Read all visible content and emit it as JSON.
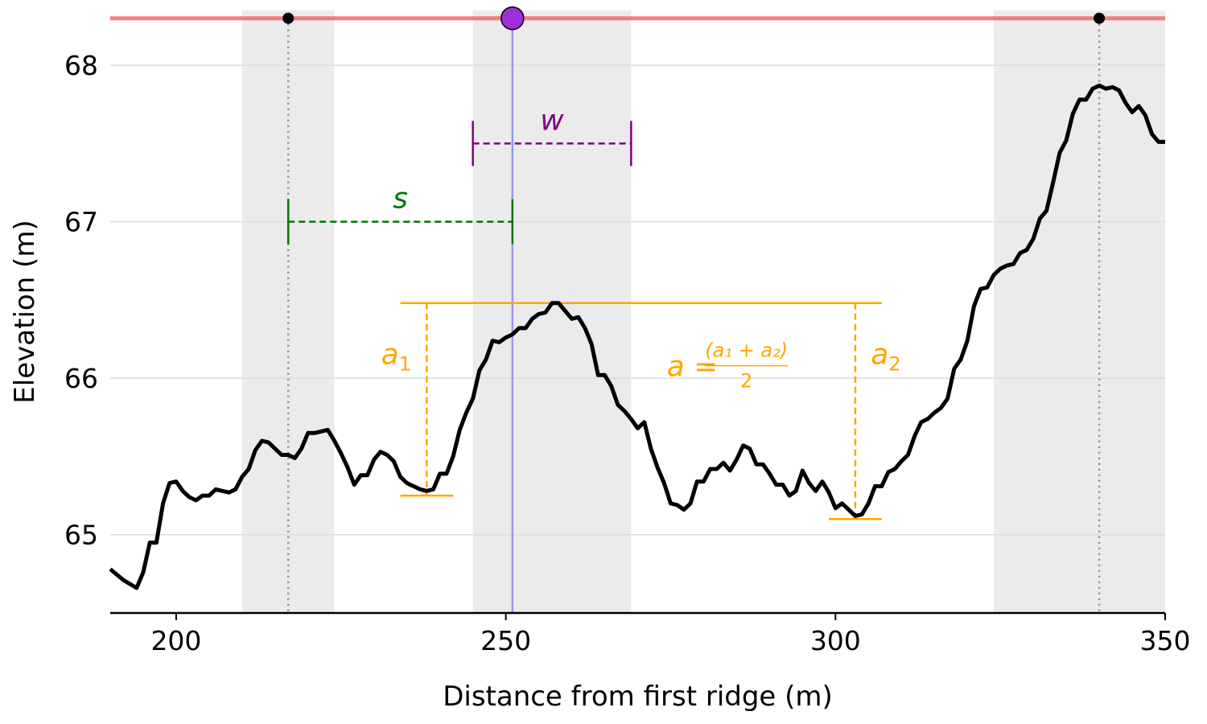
{
  "chart_data": {
    "type": "line",
    "title": "",
    "xlabel": "Distance from first ridge (m)",
    "ylabel": "Elevation (m)",
    "xlim": [
      190,
      350
    ],
    "ylim": [
      64.5,
      68.35
    ],
    "xticks": [
      200,
      250,
      300,
      350
    ],
    "yticks": [
      65,
      66,
      67,
      68
    ],
    "grid": "horizontal",
    "colors": {
      "profile": "#000000",
      "ridge_line": "#f08080",
      "shade": "#ebebeb",
      "highlight_point": "#9b30d9",
      "highlight_line": "#9999ee",
      "spacing": "#007700",
      "width": "#800080",
      "amplitude": "#ffa500",
      "grid": "#dddddd",
      "ridge_marker_line": "#888888"
    },
    "series": [
      {
        "x": [
          190,
          192,
          194,
          195,
          196,
          197,
          198,
          199,
          200,
          201,
          202,
          203,
          204,
          205,
          206,
          207,
          208,
          209,
          210,
          211,
          212,
          213,
          214,
          215,
          216,
          217,
          218,
          219,
          220,
          221,
          222,
          223,
          224,
          225,
          226,
          227,
          228,
          229,
          230,
          231,
          232,
          233,
          234,
          235,
          236,
          237,
          238,
          239,
          240,
          241,
          242,
          243,
          244,
          245,
          246,
          247,
          248,
          249,
          250,
          251,
          252,
          253,
          254,
          255,
          256,
          257,
          258,
          259,
          260,
          261,
          262,
          263,
          264,
          265,
          266,
          267,
          268,
          269,
          270,
          271,
          272,
          273,
          274,
          275,
          276,
          277,
          278,
          279,
          280,
          281,
          282,
          283,
          284,
          285,
          286,
          287,
          288,
          289,
          290,
          291,
          292,
          293,
          294,
          295,
          296,
          297,
          298,
          299,
          300,
          301,
          302,
          303,
          304,
          305,
          306,
          307,
          308,
          309,
          310,
          311,
          312,
          313,
          314,
          315,
          316,
          317,
          318,
          319,
          320,
          321,
          322,
          323,
          324,
          325,
          326,
          327,
          328,
          329,
          330,
          331,
          332,
          333,
          334,
          335,
          336,
          337,
          338,
          339,
          340,
          341,
          342,
          343,
          344,
          345,
          346,
          347,
          348,
          349,
          350
        ],
        "y": [
          64.78,
          64.71,
          64.66,
          64.76,
          64.95,
          64.95,
          65.2,
          65.33,
          65.34,
          65.28,
          65.24,
          65.22,
          65.25,
          65.25,
          65.29,
          65.28,
          65.27,
          65.29,
          65.37,
          65.42,
          65.54,
          65.6,
          65.59,
          65.55,
          65.51,
          65.51,
          65.49,
          65.55,
          65.65,
          65.65,
          65.66,
          65.67,
          65.6,
          65.52,
          65.43,
          65.32,
          65.38,
          65.38,
          65.48,
          65.53,
          65.51,
          65.47,
          65.37,
          65.33,
          65.31,
          65.29,
          65.28,
          65.29,
          65.39,
          65.39,
          65.5,
          65.67,
          65.78,
          65.87,
          66.05,
          66.12,
          66.24,
          66.23,
          66.26,
          66.28,
          66.32,
          66.32,
          66.38,
          66.41,
          66.42,
          66.48,
          66.48,
          66.43,
          66.38,
          66.39,
          66.32,
          66.22,
          66.02,
          66.02,
          65.95,
          65.83,
          65.79,
          65.74,
          65.68,
          65.72,
          65.55,
          65.43,
          65.33,
          65.2,
          65.19,
          65.16,
          65.2,
          65.34,
          65.34,
          65.42,
          65.42,
          65.46,
          65.41,
          65.48,
          65.57,
          65.55,
          65.45,
          65.45,
          65.39,
          65.32,
          65.32,
          65.25,
          65.28,
          65.41,
          65.33,
          65.28,
          65.34,
          65.27,
          65.17,
          65.2,
          65.16,
          65.12,
          65.13,
          65.2,
          65.31,
          65.31,
          65.4,
          65.42,
          65.47,
          65.51,
          65.63,
          65.72,
          65.74,
          65.78,
          65.81,
          65.87,
          66.06,
          66.12,
          66.24,
          66.46,
          66.57,
          66.58,
          66.66,
          66.7,
          66.72,
          66.73,
          66.8,
          66.82,
          66.89,
          67.02,
          67.07,
          67.25,
          67.44,
          67.52,
          67.69,
          67.78,
          67.78,
          67.85,
          67.87,
          67.85,
          67.86,
          67.84,
          67.76,
          67.7,
          67.74,
          67.68,
          67.56,
          67.51,
          67.51
        ]
      }
    ],
    "ridge_level": 68.3,
    "ridges": [
      {
        "x": 217,
        "y": 68.3
      },
      {
        "x": 340,
        "y": 68.3
      }
    ],
    "highlight": {
      "x": 251,
      "y": 68.3
    },
    "shaded_bands": [
      {
        "x0": 210,
        "x1": 224
      },
      {
        "x0": 245,
        "x1": 269
      },
      {
        "x0": 324,
        "x1": 350
      }
    ],
    "annotations": {
      "spacing": {
        "label": "s",
        "x0": 217,
        "x1": 251,
        "y": 67.0
      },
      "width": {
        "label": "w",
        "x0": 245,
        "x1": 269,
        "y": 67.5
      },
      "amplitude": {
        "top_y": 66.48,
        "top_x0": 234,
        "top_x1": 307,
        "a1": {
          "label": "a",
          "sub": "1",
          "x": 238,
          "y_bottom": 65.25,
          "cap_x0": 234,
          "cap_x1": 242
        },
        "a2": {
          "label": "a",
          "sub": "2",
          "x": 303,
          "y_bottom": 65.1,
          "cap_x0": 299,
          "cap_x1": 307
        },
        "formula": {
          "lhs": "a =",
          "numerator": "(a₁ + a₂)",
          "denominator": "2"
        }
      }
    }
  }
}
